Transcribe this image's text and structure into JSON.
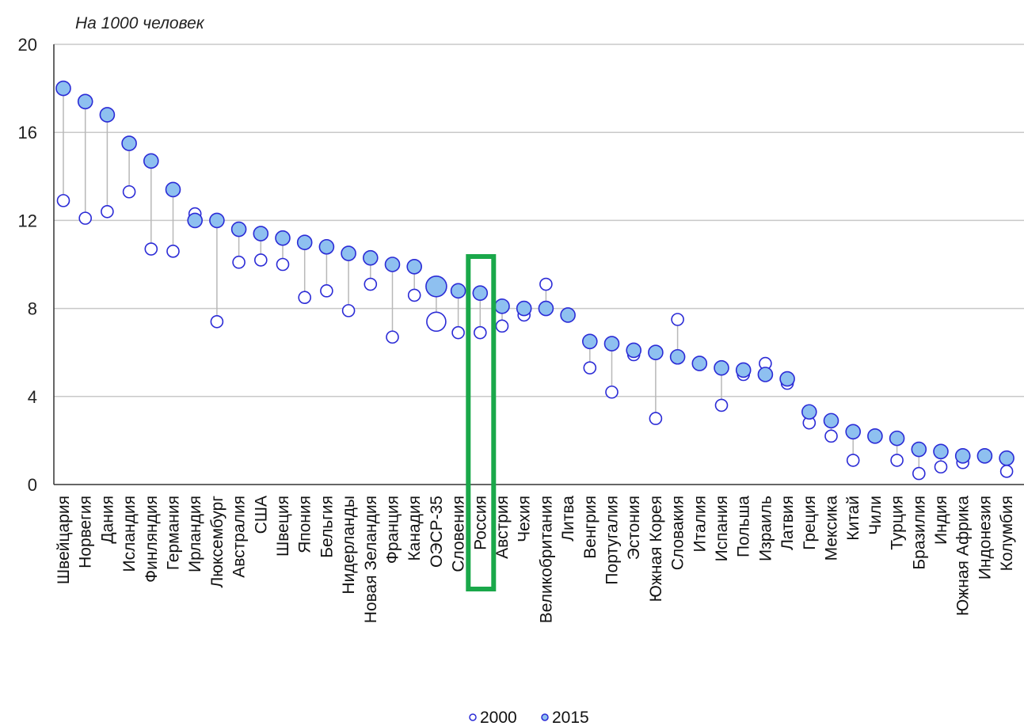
{
  "chart_data": {
    "type": "scatter",
    "unit_label": "На 1000 человек",
    "ylim": [
      0,
      20
    ],
    "yticks": [
      0,
      4,
      8,
      12,
      16,
      20
    ],
    "grid": true,
    "legend_position": "bottom",
    "highlight_category": "Россия",
    "highlight_color": "#1aa84a",
    "colors": {
      "fill_2015": "#8ec0f0",
      "stroke": "#2b2bd6",
      "stem": "#b8b8b8",
      "grid": "#c8c8c8"
    },
    "categories": [
      "Швейцария",
      "Норвегия",
      "Дания",
      "Исландия",
      "Финляндия",
      "Германия",
      "Ирландия",
      "Люксембург",
      "Австралия",
      "США",
      "Швеция",
      "Япония",
      "Бельгия",
      "Нидерланды",
      "Новая Зеландия",
      "Франция",
      "Канадия",
      "ОЭСР-35",
      "Словения",
      "Россия",
      "Австрия",
      "Чехия",
      "Великобритания",
      "Литва",
      "Венгрия",
      "Португалия",
      "Эстония",
      "Южная Корея",
      "Словакия",
      "Италия",
      "Испания",
      "Польша",
      "Израиль",
      "Латвия",
      "Греция",
      "Мексика",
      "Китай",
      "Чили",
      "Турция",
      "Бразилия",
      "Индия",
      "Южная Африка",
      "Индонезия",
      "Колумбия"
    ],
    "series": [
      {
        "name": "2000",
        "values": [
          12.9,
          12.1,
          12.4,
          13.3,
          10.7,
          10.6,
          12.3,
          7.4,
          10.1,
          10.2,
          10.0,
          8.5,
          8.8,
          7.9,
          9.1,
          6.7,
          8.6,
          7.4,
          6.9,
          6.9,
          7.2,
          7.7,
          9.1,
          7.7,
          5.3,
          4.2,
          5.9,
          3.0,
          7.5,
          5.5,
          3.6,
          5.0,
          5.5,
          4.6,
          2.8,
          2.2,
          1.1,
          2.2,
          1.1,
          0.5,
          0.8,
          1.0,
          1.3,
          0.6
        ]
      },
      {
        "name": "2015",
        "values": [
          18.0,
          17.4,
          16.8,
          15.5,
          14.7,
          13.4,
          12.0,
          12.0,
          11.6,
          11.4,
          11.2,
          11.0,
          10.8,
          10.5,
          10.3,
          10.0,
          9.9,
          9.0,
          8.8,
          8.7,
          8.1,
          8.0,
          8.0,
          7.7,
          6.5,
          6.4,
          6.1,
          6.0,
          5.8,
          5.5,
          5.3,
          5.2,
          5.0,
          4.8,
          3.3,
          2.9,
          2.4,
          2.2,
          2.1,
          1.6,
          1.5,
          1.3,
          1.3,
          1.2
        ]
      }
    ],
    "legend": [
      "2000",
      "2015"
    ]
  }
}
